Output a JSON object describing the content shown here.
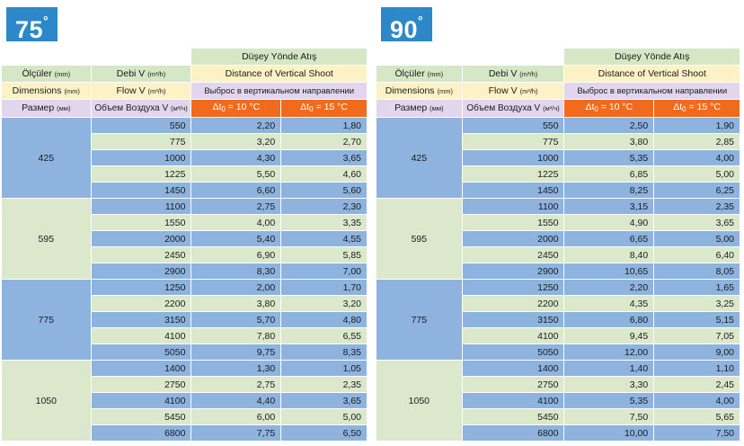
{
  "panels": [
    {
      "badge": "75",
      "degree": "°",
      "col_widths": [
        100,
        112,
        100,
        96
      ],
      "left": 1,
      "header": {
        "title_tr": "Düşey Yönde Atış",
        "title_en": "Distance of Vertical Shoot",
        "title_ru": "Выброс в вертикальном направлении",
        "row_tr": {
          "dim": "Ölçüler",
          "dim_unit": "(mm)",
          "flow": "Debi V",
          "flow_unit": "(m³/h)"
        },
        "row_en": {
          "dim": "Dimensions",
          "dim_unit": "(mm)",
          "flow": "Flow V",
          "flow_unit": "(m³/h)"
        },
        "row_ru": {
          "dim": "Размер",
          "dim_unit": "(мм)",
          "flow": "Объем Воздуха V",
          "flow_unit": "(м³/ч)",
          "dt1_pre": "Δt",
          "dt1_sub": "0",
          "dt1_post": " = 10 °C",
          "dt2_pre": "Δt",
          "dt2_sub": "0",
          "dt2_post": " = 15 °C"
        }
      },
      "groups": [
        {
          "size": "425",
          "rows": [
            [
              "550",
              "2,20",
              "1,80"
            ],
            [
              "775",
              "3,20",
              "2,70"
            ],
            [
              "1000",
              "4,30",
              "3,65"
            ],
            [
              "1225",
              "5,50",
              "4,60"
            ],
            [
              "1450",
              "6,60",
              "5,60"
            ]
          ]
        },
        {
          "size": "595",
          "rows": [
            [
              "1100",
              "2,75",
              "2,30"
            ],
            [
              "1550",
              "4,00",
              "3,35"
            ],
            [
              "2000",
              "5,40",
              "4,55"
            ],
            [
              "2450",
              "6,90",
              "5,85"
            ],
            [
              "2900",
              "8,30",
              "7,00"
            ]
          ]
        },
        {
          "size": "775",
          "rows": [
            [
              "1250",
              "2,00",
              "1,70"
            ],
            [
              "2200",
              "3,80",
              "3,20"
            ],
            [
              "3150",
              "5,70",
              "4,80"
            ],
            [
              "4100",
              "7,80",
              "6,55"
            ],
            [
              "5050",
              "9,75",
              "8,35"
            ]
          ]
        },
        {
          "size": "1050",
          "rows": [
            [
              "1400",
              "1,30",
              "1,05"
            ],
            [
              "2750",
              "2,75",
              "2,35"
            ],
            [
              "4100",
              "4,40",
              "3,65"
            ],
            [
              "5450",
              "6,00",
              "5,00"
            ],
            [
              "6800",
              "7,75",
              "6,50"
            ]
          ]
        }
      ]
    },
    {
      "badge": "90",
      "degree": "°",
      "col_widths": [
        96,
        114,
        100,
        96
      ],
      "left": 418,
      "header": {
        "title_tr": "Düşey Yönde Atış",
        "title_en": "Distance of Vertical Shoot",
        "title_ru": "Выброс в вертикальном направлении",
        "row_tr": {
          "dim": "Ölçüler",
          "dim_unit": "(mm)",
          "flow": "Debi V",
          "flow_unit": "(m³/h)"
        },
        "row_en": {
          "dim": "Dimensions",
          "dim_unit": "(mm)",
          "flow": "Flow V",
          "flow_unit": "(m³/h)"
        },
        "row_ru": {
          "dim": "Размер",
          "dim_unit": "(мм)",
          "flow": "Объем Воздуха V",
          "flow_unit": "(м³/ч)",
          "dt1_pre": "Δt",
          "dt1_sub": "0",
          "dt1_post": " = 10 °C",
          "dt2_pre": "Δt",
          "dt2_sub": "0",
          "dt2_post": " = 15 °C"
        }
      },
      "groups": [
        {
          "size": "425",
          "rows": [
            [
              "550",
              "2,50",
              "1,90"
            ],
            [
              "775",
              "3,80",
              "2,85"
            ],
            [
              "1000",
              "5,35",
              "4,00"
            ],
            [
              "1225",
              "6,85",
              "5,00"
            ],
            [
              "1450",
              "8,25",
              "6,25"
            ]
          ]
        },
        {
          "size": "595",
          "rows": [
            [
              "1100",
              "3,15",
              "2,35"
            ],
            [
              "1550",
              "4,90",
              "3,65"
            ],
            [
              "2000",
              "6,65",
              "5,00"
            ],
            [
              "2450",
              "8,40",
              "6,40"
            ],
            [
              "2900",
              "10,65",
              "8,05"
            ]
          ]
        },
        {
          "size": "775",
          "rows": [
            [
              "1250",
              "2,20",
              "1,65"
            ],
            [
              "2200",
              "4,35",
              "3,25"
            ],
            [
              "3150",
              "6,80",
              "5,15"
            ],
            [
              "4100",
              "9,45",
              "7,05"
            ],
            [
              "5050",
              "12,00",
              "9,00"
            ]
          ]
        },
        {
          "size": "1050",
          "rows": [
            [
              "1400",
              "1,40",
              "1,10"
            ],
            [
              "2750",
              "3,30",
              "2,45"
            ],
            [
              "4100",
              "5,35",
              "4,00"
            ],
            [
              "5450",
              "7,50",
              "5,65"
            ],
            [
              "6800",
              "10,00",
              "7,50"
            ]
          ]
        }
      ]
    }
  ]
}
